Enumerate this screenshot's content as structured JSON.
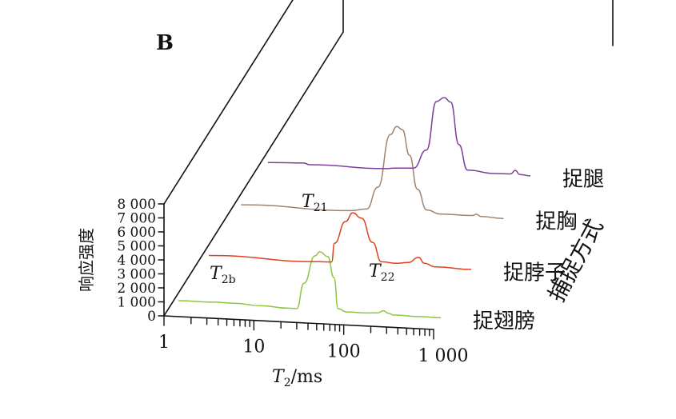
{
  "panel_label": "B",
  "chart_data": {
    "type": "line",
    "subtype": "3d-waterfall",
    "xlabel": "T2/ms",
    "xscale": "log",
    "xlim": [
      1,
      1000
    ],
    "xticks": [
      "1",
      "10",
      "100",
      "1 000"
    ],
    "ylabel": "响应强度",
    "ylim": [
      0,
      8000
    ],
    "yticks": [
      "0",
      "1 000",
      "2 000",
      "3 000",
      "4 000",
      "5 000",
      "6 000",
      "7 000",
      "8 000"
    ],
    "zlabel": "捕捉方式",
    "series": [
      {
        "name": "捉翅膀",
        "color": "#8cc63f",
        "points": [
          [
            1.2,
            300
          ],
          [
            3,
            320
          ],
          [
            5,
            320
          ],
          [
            10,
            230
          ],
          [
            20,
            160
          ],
          [
            25,
            160
          ],
          [
            30,
            2000
          ],
          [
            40,
            4000
          ],
          [
            45,
            4300
          ],
          [
            55,
            4000
          ],
          [
            65,
            2500
          ],
          [
            72,
            300
          ],
          [
            90,
            100
          ],
          [
            150,
            100
          ],
          [
            200,
            150
          ],
          [
            230,
            320
          ],
          [
            260,
            160
          ],
          [
            300,
            50
          ],
          [
            600,
            30
          ],
          [
            1000,
            20
          ]
        ]
      },
      {
        "name": "捉脖子",
        "color": "#e0401c",
        "points": [
          [
            1.2,
            80
          ],
          [
            20,
            30
          ],
          [
            28,
            60
          ],
          [
            30,
            1400
          ],
          [
            40,
            3000
          ],
          [
            48,
            3650
          ],
          [
            60,
            3300
          ],
          [
            80,
            1600
          ],
          [
            100,
            250
          ],
          [
            150,
            200
          ],
          [
            200,
            300
          ],
          [
            260,
            700
          ],
          [
            300,
            300
          ],
          [
            400,
            80
          ],
          [
            1000,
            30
          ]
        ]
      },
      {
        "name": "捉胸",
        "color": "#a0826d",
        "points": [
          [
            1.2,
            50
          ],
          [
            20,
            30
          ],
          [
            30,
            200
          ],
          [
            40,
            1800
          ],
          [
            55,
            5600
          ],
          [
            65,
            6200
          ],
          [
            75,
            6000
          ],
          [
            90,
            4200
          ],
          [
            110,
            1800
          ],
          [
            140,
            350
          ],
          [
            200,
            100
          ],
          [
            450,
            120
          ],
          [
            500,
            220
          ],
          [
            560,
            80
          ],
          [
            1000,
            20
          ]
        ]
      },
      {
        "name": "捉腿",
        "color": "#7e3f98",
        "points": [
          [
            1.2,
            30
          ],
          [
            3,
            120
          ],
          [
            3.5,
            20
          ],
          [
            25,
            20
          ],
          [
            30,
            80
          ],
          [
            50,
            150
          ],
          [
            70,
            1500
          ],
          [
            90,
            5000
          ],
          [
            110,
            5300
          ],
          [
            130,
            5000
          ],
          [
            160,
            2000
          ],
          [
            200,
            200
          ],
          [
            400,
            60
          ],
          [
            600,
            90
          ],
          [
            680,
            360
          ],
          [
            760,
            80
          ],
          [
            1000,
            20
          ]
        ]
      }
    ],
    "annotations": [
      {
        "text": "T2b",
        "series": "捉翅膀"
      },
      {
        "text": "T21",
        "series": "捉翅膀"
      },
      {
        "text": "T22",
        "series": "捉翅膀"
      }
    ],
    "grid": false
  }
}
